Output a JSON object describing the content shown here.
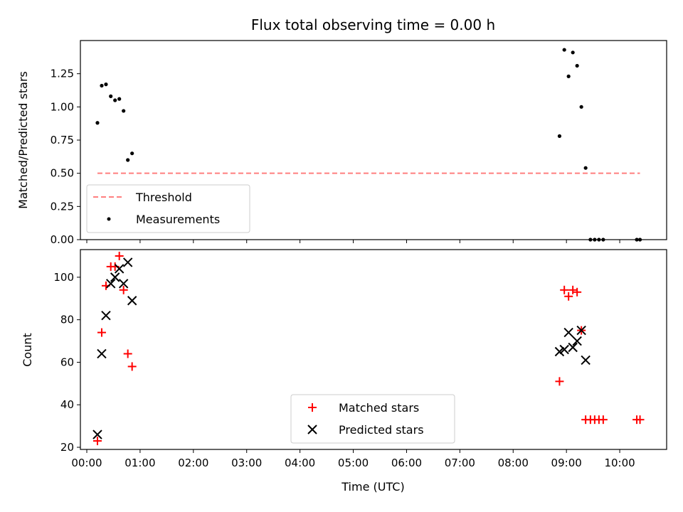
{
  "chart_data": [
    {
      "type": "scatter",
      "title": "Flux total observing time = 0.00 h",
      "ylabel": "Matched/Predicted stars",
      "xlabel": "",
      "xlim": [
        -0.12,
        10.88
      ],
      "ylim": [
        0,
        1.5
      ],
      "y_ticks": [
        0.0,
        0.25,
        0.5,
        0.75,
        1.0,
        1.25
      ],
      "y_tick_labels": [
        "0.00",
        "0.25",
        "0.50",
        "0.75",
        "1.00",
        "1.25"
      ],
      "legend_position": "lower left",
      "threshold": {
        "name": "Threshold",
        "value": 0.5,
        "x_range": [
          0.2,
          10.38
        ],
        "color": "#ff7f7f",
        "style": "dashed"
      },
      "series": [
        {
          "name": "Measurements",
          "color": "#000000",
          "marker": "dot",
          "points": [
            [
              0.2,
              0.88
            ],
            [
              0.28,
              1.16
            ],
            [
              0.36,
              1.17
            ],
            [
              0.45,
              1.08
            ],
            [
              0.53,
              1.05
            ],
            [
              0.61,
              1.06
            ],
            [
              0.69,
              0.97
            ],
            [
              0.77,
              0.6
            ],
            [
              0.85,
              0.65
            ],
            [
              8.87,
              0.78
            ],
            [
              8.96,
              1.43
            ],
            [
              9.04,
              1.23
            ],
            [
              9.12,
              1.41
            ],
            [
              9.2,
              1.31
            ],
            [
              9.28,
              1.0
            ],
            [
              9.36,
              0.54
            ],
            [
              9.45,
              0.0
            ],
            [
              9.53,
              0.0
            ],
            [
              9.61,
              0.0
            ],
            [
              9.69,
              0.0
            ],
            [
              10.32,
              0.0
            ],
            [
              10.38,
              0.0
            ]
          ]
        }
      ]
    },
    {
      "type": "scatter",
      "title": "",
      "xlabel": "Time (UTC)",
      "ylabel": "Count",
      "xlim": [
        -0.12,
        10.88
      ],
      "ylim": [
        19,
        113
      ],
      "y_ticks": [
        20,
        40,
        60,
        80,
        100
      ],
      "y_tick_labels": [
        "20",
        "40",
        "60",
        "80",
        "100"
      ],
      "x_ticks": [
        0,
        1,
        2,
        3,
        4,
        5,
        6,
        7,
        8,
        9,
        10
      ],
      "x_tick_labels": [
        "00:00",
        "01:00",
        "02:00",
        "03:00",
        "04:00",
        "05:00",
        "06:00",
        "07:00",
        "08:00",
        "09:00",
        "10:00"
      ],
      "legend_position": "lower center",
      "series": [
        {
          "name": "Matched stars",
          "color": "#ff0000",
          "marker": "plus",
          "points": [
            [
              0.2,
              23
            ],
            [
              0.28,
              74
            ],
            [
              0.36,
              96
            ],
            [
              0.45,
              105
            ],
            [
              0.53,
              105
            ],
            [
              0.61,
              110
            ],
            [
              0.69,
              94
            ],
            [
              0.77,
              64
            ],
            [
              0.85,
              58
            ],
            [
              8.87,
              51
            ],
            [
              8.96,
              94
            ],
            [
              9.04,
              91
            ],
            [
              9.12,
              94
            ],
            [
              9.2,
              93
            ],
            [
              9.28,
              75
            ],
            [
              9.36,
              33
            ],
            [
              9.45,
              33
            ],
            [
              9.53,
              33
            ],
            [
              9.61,
              33
            ],
            [
              9.69,
              33
            ],
            [
              10.32,
              33
            ],
            [
              10.38,
              33
            ]
          ]
        },
        {
          "name": "Predicted stars",
          "color": "#000000",
          "marker": "x",
          "points": [
            [
              0.2,
              26
            ],
            [
              0.28,
              64
            ],
            [
              0.36,
              82
            ],
            [
              0.45,
              97
            ],
            [
              0.53,
              100
            ],
            [
              0.61,
              104
            ],
            [
              0.69,
              97
            ],
            [
              0.77,
              107
            ],
            [
              0.85,
              89
            ],
            [
              8.87,
              65
            ],
            [
              8.96,
              66
            ],
            [
              9.04,
              74
            ],
            [
              9.12,
              67
            ],
            [
              9.2,
              70
            ],
            [
              9.28,
              75
            ],
            [
              9.36,
              61
            ]
          ]
        }
      ]
    }
  ]
}
